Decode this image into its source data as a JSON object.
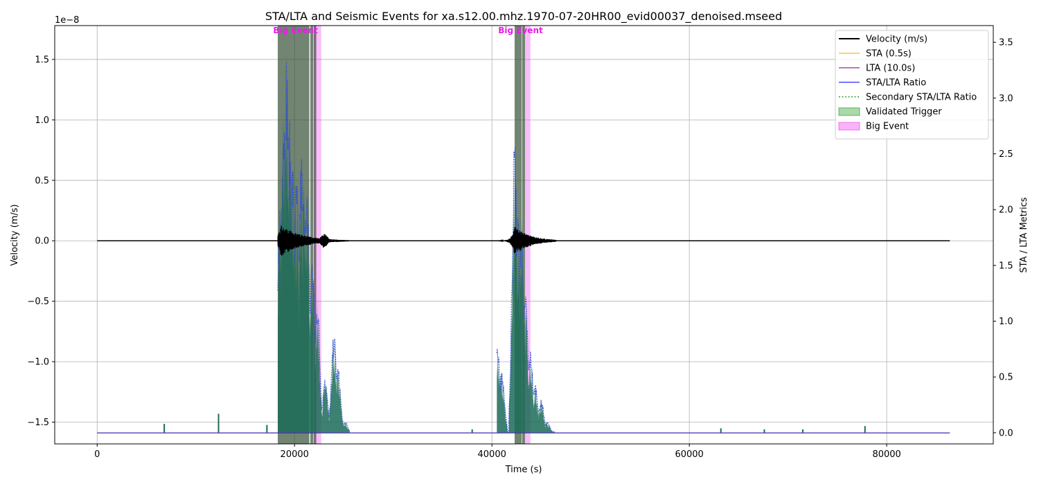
{
  "chart_data": {
    "type": "line",
    "title": "STA/LTA and Seismic Events for xa.s12.00.mhz.1970-07-20HR00_evid00037_denoised.mseed",
    "xlabel": "Time (s)",
    "ylabel_left": "Velocity (m/s)",
    "ylabel_right": "STA / LTA Metrics",
    "left_axis_offset_label": "1e−8",
    "xlim": [
      -4300,
      90800
    ],
    "ylim_left": [
      -1.68,
      1.78
    ],
    "ylim_left_multiplier": 1e-08,
    "ylim_right": [
      -0.1,
      3.65
    ],
    "x_ticks": [
      {
        "value": 0,
        "label": "0"
      },
      {
        "value": 20000,
        "label": "20000"
      },
      {
        "value": 40000,
        "label": "40000"
      },
      {
        "value": 60000,
        "label": "60000"
      },
      {
        "value": 80000,
        "label": "80000"
      }
    ],
    "y_left_ticks": [
      {
        "value": 1.5,
        "label": "1.5"
      },
      {
        "value": 1.0,
        "label": "1.0"
      },
      {
        "value": 0.5,
        "label": "0.5"
      },
      {
        "value": 0.0,
        "label": "0.0"
      },
      {
        "value": -0.5,
        "label": "−0.5"
      },
      {
        "value": -1.0,
        "label": "−1.0"
      },
      {
        "value": -1.5,
        "label": "−1.5"
      }
    ],
    "y_right_ticks": [
      {
        "value": 3.5,
        "label": "3.5"
      },
      {
        "value": 3.0,
        "label": "3.0"
      },
      {
        "value": 2.5,
        "label": "2.5"
      },
      {
        "value": 2.0,
        "label": "2.0"
      },
      {
        "value": 1.5,
        "label": "1.5"
      },
      {
        "value": 1.0,
        "label": "1.0"
      },
      {
        "value": 0.5,
        "label": "0.5"
      },
      {
        "value": 0.0,
        "label": "0.0"
      }
    ],
    "grid": true,
    "legend_position": "top-right",
    "legend": [
      {
        "label": "Velocity (m/s)",
        "kind": "line",
        "color": "#000000"
      },
      {
        "label": "STA (0.5s)",
        "kind": "line",
        "color": "#ffa500"
      },
      {
        "label": "LTA (10.0s)",
        "kind": "line",
        "color": "#800080"
      },
      {
        "label": "STA/LTA Ratio",
        "kind": "line",
        "color": "#0000ff"
      },
      {
        "label": "Secondary STA/LTA Ratio",
        "kind": "dotted",
        "color": "#2ca02c"
      },
      {
        "label": "Validated Trigger",
        "kind": "patch",
        "color": "#2ca02c"
      },
      {
        "label": "Big Event",
        "kind": "patch",
        "color": "#ee44ee"
      }
    ],
    "validated_triggers": [
      [
        18300,
        21500
      ],
      [
        21600,
        21900
      ],
      [
        21950,
        22200
      ],
      [
        42300,
        43000
      ],
      [
        43050,
        43350
      ]
    ],
    "big_events": [
      {
        "x0": 21950,
        "x1": 22700,
        "label": "Big Event",
        "label_x": 20100
      },
      {
        "x0": 43350,
        "x1": 43900,
        "label": "Big Event",
        "label_x": 42900
      }
    ],
    "velocity_bursts": [
      {
        "t0": 18300,
        "t1": 25500,
        "peak_t": 18600,
        "peak_amp": 0.13,
        "decay": 2200,
        "color": "#000000"
      },
      {
        "t0": 40600,
        "t1": 46500,
        "peak_t": 42300,
        "peak_amp": 0.12,
        "decay": 1600,
        "color": "#000000"
      }
    ],
    "sta_lta_ratio_peaks": [
      {
        "x": 18550,
        "y": 2.18
      },
      {
        "x": 18900,
        "y": 3.1
      },
      {
        "x": 19200,
        "y": 3.45
      },
      {
        "x": 19500,
        "y": 2.8
      },
      {
        "x": 19800,
        "y": 2.5
      },
      {
        "x": 20200,
        "y": 2.35
      },
      {
        "x": 20700,
        "y": 2.55
      },
      {
        "x": 21000,
        "y": 2.3
      },
      {
        "x": 21300,
        "y": 2.2
      },
      {
        "x": 21800,
        "y": 1.6
      },
      {
        "x": 22300,
        "y": 1.25
      },
      {
        "x": 23100,
        "y": 0.5
      },
      {
        "x": 24000,
        "y": 0.9
      },
      {
        "x": 24400,
        "y": 0.6
      },
      {
        "x": 25100,
        "y": 0.1
      },
      {
        "x": 40600,
        "y": 0.8
      },
      {
        "x": 41000,
        "y": 0.55
      },
      {
        "x": 42300,
        "y": 2.7
      },
      {
        "x": 42600,
        "y": 2.05
      },
      {
        "x": 43000,
        "y": 1.95
      },
      {
        "x": 43400,
        "y": 1.25
      },
      {
        "x": 43900,
        "y": 0.75
      },
      {
        "x": 44400,
        "y": 0.45
      },
      {
        "x": 45000,
        "y": 0.3
      },
      {
        "x": 45600,
        "y": 0.1
      }
    ],
    "sta_lta_small_spikes": [
      {
        "x": 6800,
        "y": 0.08
      },
      {
        "x": 12300,
        "y": 0.17
      },
      {
        "x": 17200,
        "y": 0.07
      },
      {
        "x": 38000,
        "y": 0.03
      },
      {
        "x": 63200,
        "y": 0.04
      },
      {
        "x": 67600,
        "y": 0.03
      },
      {
        "x": 71500,
        "y": 0.03
      },
      {
        "x": 77800,
        "y": 0.06
      }
    ],
    "series_colors": {
      "ratio_fill": "#1b6b57",
      "ratio_line": "#2f4fd0",
      "sta": "#ffa500",
      "lta": "#800080",
      "secondary": "#2ca02c",
      "big_event_label": "#e61ee6"
    }
  }
}
